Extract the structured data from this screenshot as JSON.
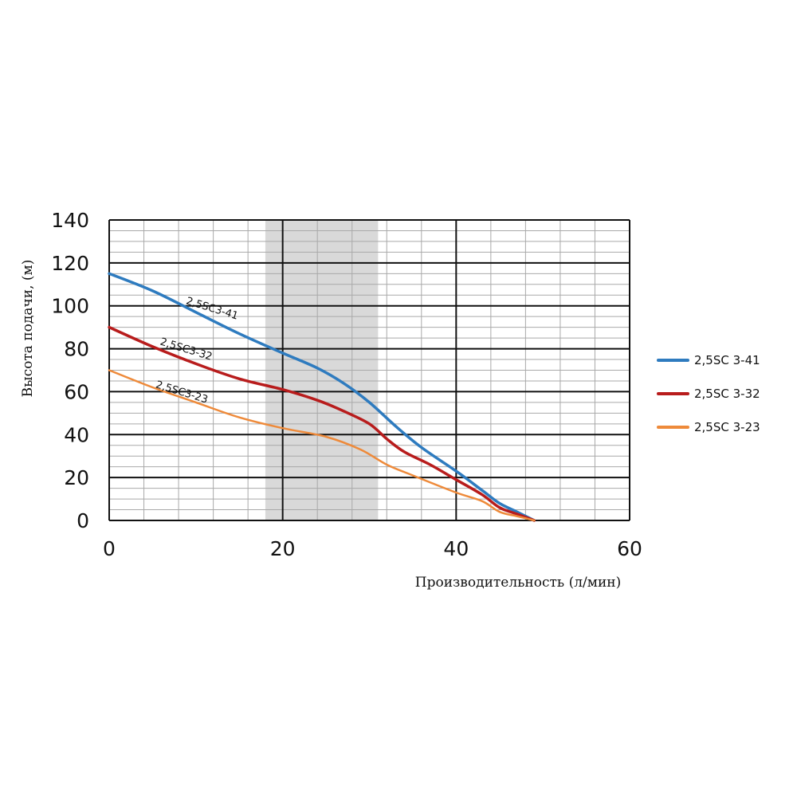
{
  "chart_data": {
    "type": "line",
    "title": "",
    "xlabel": "Производительность (л/мин)",
    "ylabel": "Высота подачи, (м)",
    "xlim": [
      0,
      60
    ],
    "ylim": [
      0,
      140
    ],
    "x_ticks": [
      0,
      20,
      40,
      60
    ],
    "y_ticks": [
      0,
      20,
      40,
      60,
      80,
      100,
      120,
      140
    ],
    "grid": true,
    "legend_position": "right",
    "highlight_band": {
      "x_range": [
        18,
        31
      ],
      "color": "#d9d9d9"
    },
    "series": [
      {
        "name": "2,5SC 3-41",
        "curve_label": "2,5SC3-41",
        "color": "#2e7bbf",
        "points": [
          [
            0,
            115
          ],
          [
            5,
            107
          ],
          [
            10,
            97
          ],
          [
            15,
            87
          ],
          [
            20,
            78
          ],
          [
            24,
            71
          ],
          [
            27,
            64
          ],
          [
            30,
            55
          ],
          [
            33,
            44
          ],
          [
            36,
            34
          ],
          [
            40,
            23
          ],
          [
            43,
            14
          ],
          [
            45,
            8
          ],
          [
            47,
            4
          ],
          [
            49,
            0
          ]
        ]
      },
      {
        "name": "2,5SC 3-32",
        "curve_label": "2,5SC3-32",
        "color": "#b81c1c",
        "points": [
          [
            0,
            90
          ],
          [
            5,
            81
          ],
          [
            10,
            73
          ],
          [
            15,
            66
          ],
          [
            20,
            61
          ],
          [
            24,
            56
          ],
          [
            27,
            51
          ],
          [
            30,
            45
          ],
          [
            32,
            38
          ],
          [
            34,
            32
          ],
          [
            37,
            26
          ],
          [
            40,
            19
          ],
          [
            43,
            12
          ],
          [
            45,
            6
          ],
          [
            47,
            3
          ],
          [
            49,
            0
          ]
        ]
      },
      {
        "name": "2,5SC 3-23",
        "curve_label": "2,5SC3-23",
        "color": "#ee8a3a",
        "points": [
          [
            0,
            70
          ],
          [
            5,
            62
          ],
          [
            10,
            55
          ],
          [
            15,
            48
          ],
          [
            20,
            43
          ],
          [
            25,
            39
          ],
          [
            29,
            33
          ],
          [
            32,
            26
          ],
          [
            35,
            21
          ],
          [
            40,
            13
          ],
          [
            43,
            9
          ],
          [
            45,
            4
          ],
          [
            47,
            2
          ],
          [
            49,
            0
          ]
        ]
      }
    ]
  }
}
